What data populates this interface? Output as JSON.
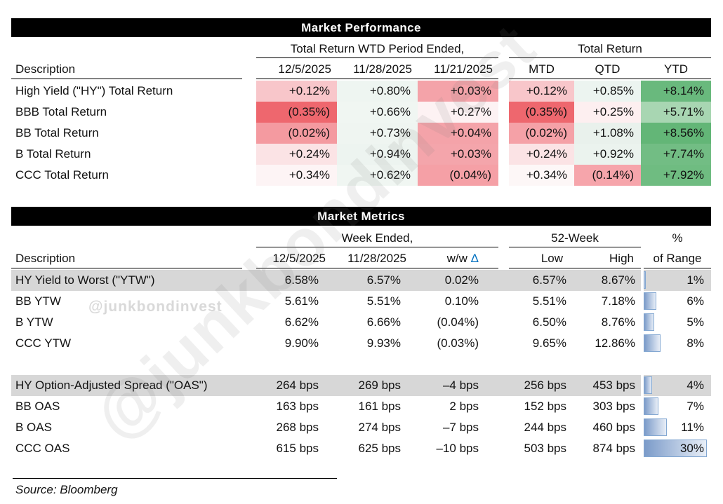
{
  "palette": {
    "title_bg": "#000000",
    "title_fg": "#ffffff",
    "highlight_row": "#d7d7d7",
    "bar_border": "#84a8d2",
    "bar_fill_start": "#7b9bc9",
    "bar_fill_end": "#e8eef7",
    "delta_symbol": "#0070c0",
    "watermark_small": "#d9d9d9",
    "watermark_large": "rgba(125,125,125,0.12)"
  },
  "watermark": {
    "handle": "@junkbondinvest"
  },
  "source_note": "Source: Bloomberg",
  "chart_data": [
    {
      "type": "table",
      "title": "Market Performance",
      "group_headers": [
        "Total Return WTD Period Ended,",
        "Total Return"
      ],
      "columns": [
        "Description",
        "12/5/2025",
        "11/28/2025",
        "11/21/2025",
        "MTD",
        "QTD",
        "YTD"
      ],
      "rows": [
        {
          "label": "High Yield (\"HY\") Total Return",
          "values": [
            "+0.12%",
            "+0.80%",
            "+0.03%",
            "+0.12%",
            "+0.85%",
            "+8.14%"
          ],
          "colors": [
            "#f8c6ca",
            "#eef5f1",
            "#f4a3a9",
            "#f8c6ca",
            "#ecf4f0",
            "#69b97d"
          ]
        },
        {
          "label": "BBB Total Return",
          "values": [
            "(0.35%)",
            "+0.66%",
            "+0.27%",
            "(0.35%)",
            "+0.25%",
            "+5.71%"
          ],
          "colors": [
            "#ee676e",
            "#f0f6f2",
            "#fdf2f3",
            "#ee676e",
            "#fdeff0",
            "#a8d6b2"
          ]
        },
        {
          "label": "BB Total Return",
          "values": [
            "(0.02%)",
            "+0.73%",
            "+0.04%",
            "(0.02%)",
            "+1.08%",
            "+8.56%"
          ],
          "colors": [
            "#f49aa0",
            "#eff5f1",
            "#f4a3a9",
            "#f5a1a7",
            "#e9f1ec",
            "#63b677"
          ]
        },
        {
          "label": "B Total Return",
          "values": [
            "+0.24%",
            "+0.94%",
            "+0.03%",
            "+0.24%",
            "+0.92%",
            "+7.74%"
          ],
          "colors": [
            "#fbe3e5",
            "#edf4f0",
            "#f4a5ab",
            "#fbe3e5",
            "#ebf3ee",
            "#72bd84"
          ]
        },
        {
          "label": "CCC Total Return",
          "values": [
            "+0.34%",
            "+0.62%",
            "(0.04%)",
            "+0.34%",
            "(0.14%)",
            "+7.92%"
          ],
          "colors": [
            "#fdf4f5",
            "#f0f6f2",
            "#f5a0a6",
            "#fdf7f7",
            "#f6a5ab",
            "#6fbc81"
          ]
        }
      ]
    },
    {
      "type": "table",
      "title": "Market Metrics",
      "group_headers": [
        "Week Ended,",
        "52-Week",
        "%"
      ],
      "columns": [
        "Description",
        "12/5/2025",
        "11/28/2025",
        "w/w Δ",
        "Low",
        "High",
        "of Range"
      ],
      "delta_header": {
        "prefix": "w/w",
        "symbol": "Δ"
      },
      "sections": [
        {
          "rows": [
            {
              "label": "HY Yield to Worst (\"YTW\")",
              "highlight": true,
              "values": [
                "6.58%",
                "6.57%",
                "0.02%",
                "6.57%",
                "8.67%"
              ],
              "range_pct": 1,
              "range_label": "1%"
            },
            {
              "label": "BB YTW",
              "highlight": false,
              "values": [
                "5.61%",
                "5.51%",
                "0.10%",
                "5.51%",
                "7.18%"
              ],
              "range_pct": 6,
              "range_label": "6%"
            },
            {
              "label": "B YTW",
              "highlight": false,
              "values": [
                "6.62%",
                "6.66%",
                "(0.04%)",
                "6.50%",
                "8.76%"
              ],
              "range_pct": 5,
              "range_label": "5%"
            },
            {
              "label": "CCC YTW",
              "highlight": false,
              "values": [
                "9.90%",
                "9.93%",
                "(0.03%)",
                "9.65%",
                "12.86%"
              ],
              "range_pct": 8,
              "range_label": "8%"
            }
          ]
        },
        {
          "rows": [
            {
              "label": "HY Option-Adjusted Spread (\"OAS\")",
              "highlight": true,
              "values": [
                "264 bps",
                "269 bps",
                "–4 bps",
                "256 bps",
                "453 bps"
              ],
              "range_pct": 4,
              "range_label": "4%"
            },
            {
              "label": "BB OAS",
              "highlight": false,
              "values": [
                "163 bps",
                "161 bps",
                "2 bps",
                "152 bps",
                "303 bps"
              ],
              "range_pct": 7,
              "range_label": "7%"
            },
            {
              "label": "B OAS",
              "highlight": false,
              "values": [
                "268 bps",
                "274 bps",
                "–7 bps",
                "244 bps",
                "460 bps"
              ],
              "range_pct": 11,
              "range_label": "11%"
            },
            {
              "label": "CCC OAS",
              "highlight": false,
              "values": [
                "615 bps",
                "625 bps",
                "–10 bps",
                "503 bps",
                "874 bps"
              ],
              "range_pct": 30,
              "range_label": "30%"
            }
          ]
        }
      ]
    }
  ]
}
